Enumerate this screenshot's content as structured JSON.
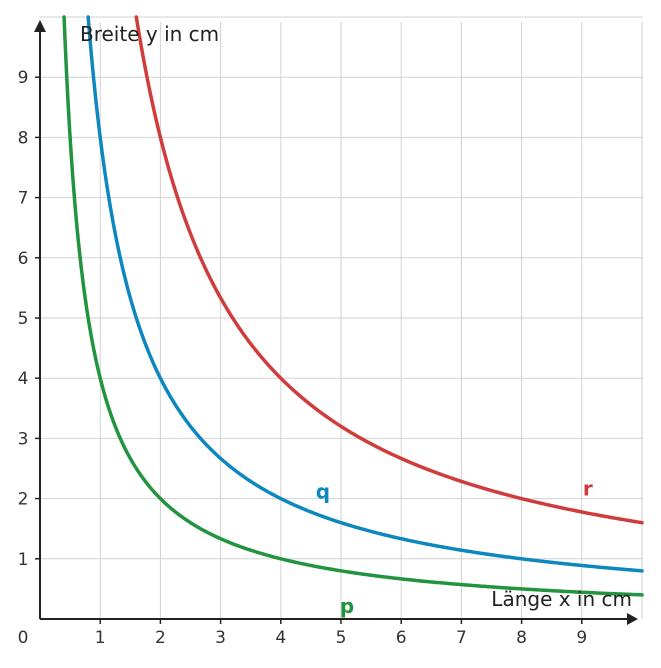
{
  "chart_data": {
    "type": "line",
    "xlabel": "Länge x in cm",
    "ylabel": "Breite y in cm",
    "xlim": [
      0,
      10
    ],
    "ylim": [
      0,
      10
    ],
    "grid": true,
    "origin_label": "0",
    "x_ticks": [
      "1",
      "2",
      "3",
      "4",
      "5",
      "6",
      "7",
      "8",
      "9"
    ],
    "y_ticks": [
      "1",
      "2",
      "3",
      "4",
      "5",
      "6",
      "7",
      "8",
      "9"
    ],
    "series": [
      {
        "name": "p",
        "color": "#22933f",
        "formula": "y = 4 / x",
        "x": [
          0.4,
          0.5,
          0.75,
          1,
          1.5,
          2,
          3,
          4,
          5,
          6,
          7,
          8,
          9,
          10
        ],
        "y": [
          10,
          8,
          5.33,
          4,
          2.67,
          2,
          1.33,
          1,
          0.8,
          0.67,
          0.57,
          0.5,
          0.44,
          0.4
        ]
      },
      {
        "name": "q",
        "color": "#0e87bf",
        "formula": "y = 8 / x",
        "x": [
          0.8,
          1,
          1.5,
          2,
          3,
          4,
          5,
          6,
          7,
          8,
          9,
          10
        ],
        "y": [
          10,
          8,
          5.33,
          4,
          2.67,
          2,
          1.6,
          1.33,
          1.14,
          1,
          0.89,
          0.8
        ]
      },
      {
        "name": "r",
        "color": "#d03c3c",
        "formula": "y = 16 / x",
        "x": [
          1.6,
          2,
          3,
          4,
          5,
          6,
          7,
          8,
          9,
          10
        ],
        "y": [
          10,
          8,
          5.33,
          4,
          3.2,
          2.67,
          2.29,
          2,
          1.78,
          1.6
        ]
      }
    ]
  }
}
